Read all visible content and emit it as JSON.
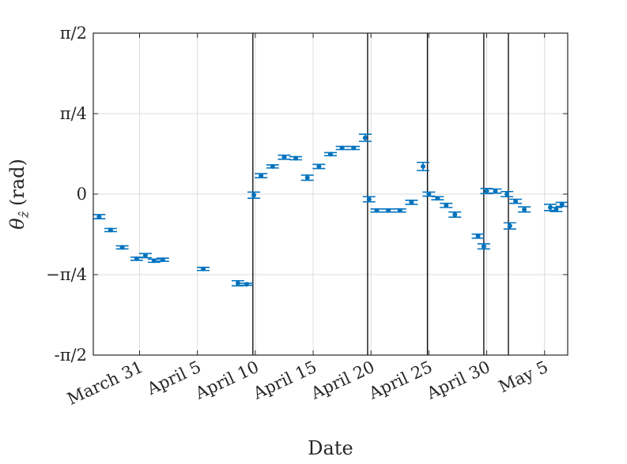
{
  "chart_data": {
    "type": "scatter",
    "xlabel": "Date",
    "ylabel_symbol": "θ",
    "ylabel_subscript": "ẑ",
    "ylabel_unit": "(rad)",
    "xlim": [
      "2024-03-27",
      "2024-05-07"
    ],
    "ylim": [
      -1.5708,
      1.5708
    ],
    "y_ticks": [
      {
        "value": 1.5708,
        "label": "π/2"
      },
      {
        "value": 0.7854,
        "label": "π/4"
      },
      {
        "value": 0,
        "label": "0"
      },
      {
        "value": -0.7854,
        "label": "−π/4"
      },
      {
        "value": -1.5708,
        "label": "-π/2"
      }
    ],
    "x_ticks": [
      {
        "date": "2024-03-31",
        "label": "March 31"
      },
      {
        "date": "2024-04-05",
        "label": "April 5"
      },
      {
        "date": "2024-04-10",
        "label": "April 10"
      },
      {
        "date": "2024-04-15",
        "label": "April 15"
      },
      {
        "date": "2024-04-20",
        "label": "April 20"
      },
      {
        "date": "2024-04-25",
        "label": "April 25"
      },
      {
        "date": "2024-04-30",
        "label": "April 30"
      },
      {
        "date": "2024-05-05",
        "label": "May 5"
      }
    ],
    "grid": true,
    "vertical_lines": [
      "2024-04-09 19:00",
      "2024-04-19 17:00",
      "2024-04-24 21:00",
      "2024-04-29 18:00",
      "2024-05-01 21:00"
    ],
    "series": [
      {
        "color": "#0072BD",
        "points": [
          {
            "x": "2024-03-27 12:00",
            "y": -0.22,
            "err": 0.02
          },
          {
            "x": "2024-03-28 12:00",
            "y": -0.35,
            "err": 0.015
          },
          {
            "x": "2024-03-29 12:00",
            "y": -0.52,
            "err": 0.015
          },
          {
            "x": "2024-03-30 18:00",
            "y": -0.63,
            "err": 0.015
          },
          {
            "x": "2024-03-31 12:00",
            "y": -0.6,
            "err": 0.02
          },
          {
            "x": "2024-04-01 06:00",
            "y": -0.65,
            "err": 0.015
          },
          {
            "x": "2024-04-02 00:00",
            "y": -0.64,
            "err": 0.015
          },
          {
            "x": "2024-04-05 12:00",
            "y": -0.73,
            "err": 0.015
          },
          {
            "x": "2024-04-08 12:00",
            "y": -0.87,
            "err": 0.025
          },
          {
            "x": "2024-04-09 06:00",
            "y": -0.88,
            "err": 0.01
          },
          {
            "x": "2024-04-09 21:00",
            "y": -0.01,
            "err": 0.03
          },
          {
            "x": "2024-04-10 12:00",
            "y": 0.18,
            "err": 0.02
          },
          {
            "x": "2024-04-11 12:00",
            "y": 0.27,
            "err": 0.015
          },
          {
            "x": "2024-04-12 12:00",
            "y": 0.36,
            "err": 0.02
          },
          {
            "x": "2024-04-13 12:00",
            "y": 0.35,
            "err": 0.015
          },
          {
            "x": "2024-04-14 12:00",
            "y": 0.16,
            "err": 0.025
          },
          {
            "x": "2024-04-15 12:00",
            "y": 0.27,
            "err": 0.02
          },
          {
            "x": "2024-04-16 12:00",
            "y": 0.39,
            "err": 0.015
          },
          {
            "x": "2024-04-17 12:00",
            "y": 0.45,
            "err": 0.015
          },
          {
            "x": "2024-04-18 12:00",
            "y": 0.45,
            "err": 0.015
          },
          {
            "x": "2024-04-19 12:00",
            "y": 0.55,
            "err": 0.035
          },
          {
            "x": "2024-04-19 20:00",
            "y": -0.05,
            "err": 0.025
          },
          {
            "x": "2024-04-20 12:00",
            "y": -0.16,
            "err": 0.015
          },
          {
            "x": "2024-04-21 12:00",
            "y": -0.16,
            "err": 0.015
          },
          {
            "x": "2024-04-22 12:00",
            "y": -0.16,
            "err": 0.015
          },
          {
            "x": "2024-04-23 12:00",
            "y": -0.08,
            "err": 0.02
          },
          {
            "x": "2024-04-24 12:00",
            "y": 0.27,
            "err": 0.04
          },
          {
            "x": "2024-04-25 00:00",
            "y": 0.0,
            "err": 0.02
          },
          {
            "x": "2024-04-25 18:00",
            "y": -0.04,
            "err": 0.015
          },
          {
            "x": "2024-04-26 12:00",
            "y": -0.11,
            "err": 0.02
          },
          {
            "x": "2024-04-27 06:00",
            "y": -0.2,
            "err": 0.025
          },
          {
            "x": "2024-04-29 06:00",
            "y": -0.41,
            "err": 0.02
          },
          {
            "x": "2024-04-29 18:00",
            "y": -0.51,
            "err": 0.025
          },
          {
            "x": "2024-04-30 00:00",
            "y": 0.03,
            "err": 0.025
          },
          {
            "x": "2024-04-30 18:00",
            "y": 0.03,
            "err": 0.02
          },
          {
            "x": "2024-05-01 18:00",
            "y": 0.0,
            "err": 0.025
          },
          {
            "x": "2024-05-02 00:00",
            "y": -0.31,
            "err": 0.03
          },
          {
            "x": "2024-05-02 12:00",
            "y": -0.07,
            "err": 0.02
          },
          {
            "x": "2024-05-03 06:00",
            "y": -0.15,
            "err": 0.025
          },
          {
            "x": "2024-05-05 12:00",
            "y": -0.13,
            "err": 0.03
          },
          {
            "x": "2024-05-06 00:00",
            "y": -0.15,
            "err": 0.02
          },
          {
            "x": "2024-05-06 12:00",
            "y": -0.1,
            "err": 0.02
          }
        ]
      }
    ]
  }
}
